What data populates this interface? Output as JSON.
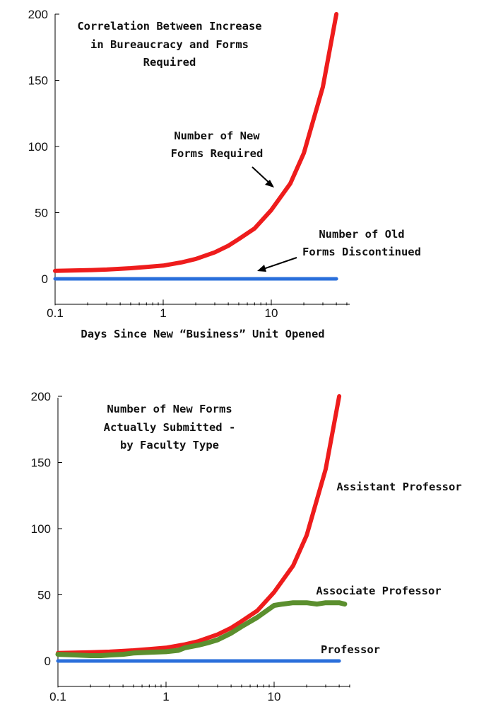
{
  "chart_data": [
    {
      "type": "line",
      "x_scale": "log",
      "xlim": [
        0.1,
        50
      ],
      "ylim": [
        -20,
        200
      ],
      "yticks": [
        0,
        50,
        100,
        150,
        200
      ],
      "xticks": [
        0.1,
        1,
        10
      ],
      "xtick_labels": [
        "0.1",
        "1",
        "10"
      ],
      "ytick_labels": [
        "0",
        "50",
        "100",
        "150",
        "200"
      ],
      "title_lines": [
        "Correlation Between Increase",
        "in Bureaucracy and Forms",
        "Required"
      ],
      "xlabel": "Days Since New “Business” Unit Opened",
      "grid": false,
      "series": [
        {
          "key": "new_forms",
          "color": "#ee1c1c",
          "x": [
            0.1,
            0.2,
            0.3,
            0.5,
            0.7,
            1,
            1.5,
            2,
            3,
            4,
            5,
            7,
            10,
            15,
            20,
            30,
            40
          ],
          "y": [
            6,
            6.5,
            7,
            8,
            9,
            10,
            12.5,
            15,
            20,
            25,
            30,
            38,
            52,
            72,
            95,
            145,
            200
          ]
        },
        {
          "key": "old_forms",
          "color": "#2a6fdb",
          "x": [
            0.1,
            40
          ],
          "y": [
            0,
            0
          ]
        }
      ],
      "annotations": [
        {
          "key": "new_forms_label",
          "lines": [
            "Number of New",
            "Forms Required"
          ],
          "arrow_to": [
            11.5,
            67
          ]
        },
        {
          "key": "old_forms_label",
          "lines": [
            "Number of Old",
            "Forms Discontinued"
          ],
          "arrow_to": [
            7,
            5
          ]
        }
      ]
    },
    {
      "type": "line",
      "x_scale": "log",
      "xlim": [
        0.1,
        50
      ],
      "ylim": [
        -20,
        200
      ],
      "yticks": [
        0,
        50,
        100,
        150,
        200
      ],
      "xticks": [
        0.1,
        1,
        10
      ],
      "xtick_labels": [
        "0.1",
        "1",
        "10"
      ],
      "ytick_labels": [
        "0",
        "50",
        "100",
        "150",
        "200"
      ],
      "title_lines": [
        "Number of New Forms",
        "Actually Submitted -",
        "by Faculty Type"
      ],
      "xlabel": "",
      "grid": false,
      "series": [
        {
          "key": "assistant",
          "name": "Assistant Professor",
          "color": "#ee1c1c",
          "x": [
            0.1,
            0.2,
            0.3,
            0.5,
            0.7,
            1,
            1.5,
            2,
            3,
            4,
            5,
            7,
            10,
            15,
            20,
            30,
            40
          ],
          "y": [
            6,
            6.5,
            7,
            8,
            9,
            10,
            12.5,
            15,
            20,
            25,
            30,
            38,
            52,
            72,
            95,
            145,
            200
          ]
        },
        {
          "key": "associate",
          "name": "Associate Professor",
          "color": "#5b8f2e",
          "x": [
            0.1,
            0.15,
            0.2,
            0.25,
            0.3,
            0.4,
            0.5,
            0.7,
            1,
            1.3,
            1.5,
            2,
            2.5,
            3,
            4,
            5,
            7,
            10,
            12,
            15,
            20,
            25,
            30,
            40,
            45
          ],
          "y": [
            5,
            4.5,
            4,
            4,
            4.5,
            5,
            6,
            6.5,
            7,
            8,
            10,
            12,
            14,
            16,
            21,
            26,
            33,
            42,
            43,
            44,
            44,
            43,
            44,
            44,
            43
          ]
        },
        {
          "key": "professor",
          "name": "Professor",
          "color": "#2a6fdb",
          "x": [
            0.1,
            40
          ],
          "y": [
            0,
            0
          ]
        }
      ]
    }
  ]
}
